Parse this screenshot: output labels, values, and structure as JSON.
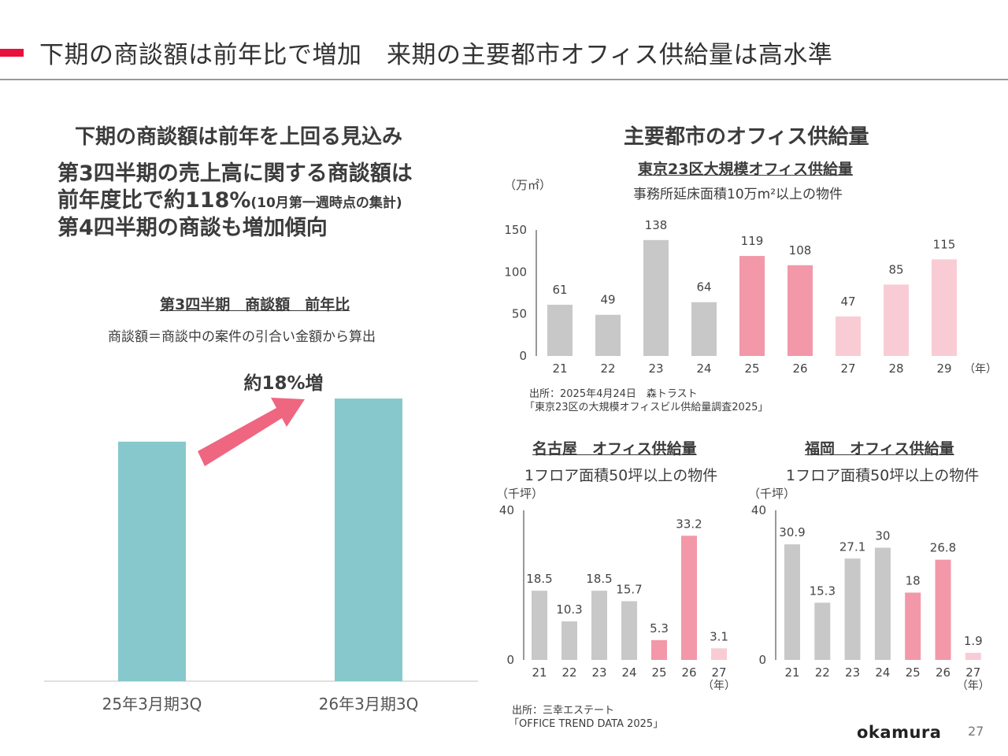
{
  "header": {
    "title": "下期の商談額は前年比で増加　来期の主要都市オフィス供給量は高水準"
  },
  "left": {
    "heading": "下期の商談額は前年を上回る見込み",
    "lead1": "第3四半期の売上高に関する商談額は",
    "lead2": "前年度比で約118%",
    "lead2_note": "(10月第一週時点の集計)",
    "lead3": "第4四半期の商談も増加傾向",
    "chart_title": "第3四半期　商談額　前年比",
    "chart_note": "商談額＝商談中の案件の引合い金額から算出",
    "increase_label": "約18%増"
  },
  "right": {
    "heading": "主要都市のオフィス供給量",
    "tokyo_title": "東京23区大規模オフィス供給量",
    "tokyo_note": "事務所延床面積10万m²以上の物件",
    "tokyo_source_1": "出所：2025年4月24日　森トラスト",
    "tokyo_source_2": "「東京23区の大規模オフィスビル供給量調査2025」",
    "nagoya_title": "名古屋　オフィス供給量",
    "fukuoka_title": "福岡　オフィス供給量",
    "area_note": "1フロア面積50坪以上の物件",
    "bottom_source_1": "出所：三幸エステート",
    "bottom_source_2": "「OFFICE TREND DATA 2025」"
  },
  "footer": {
    "logo": "okamura",
    "page": "27"
  },
  "colors": {
    "accent": "#e8103c",
    "teal": "#86c8cb",
    "gray": "#c8c8c8",
    "pink": "#f298a8",
    "lightpink": "#f9ccd5",
    "arrow": "#ef6680"
  },
  "chart_data": [
    {
      "id": "deals",
      "type": "bar",
      "title": "第3四半期　商談額　前年比",
      "categories": [
        "25年3月期3Q",
        "26年3月期3Q"
      ],
      "values": [
        100,
        118
      ],
      "unit": "relative index (prior year = 100)",
      "annotation": "約18%増"
    },
    {
      "id": "tokyo",
      "type": "bar",
      "title": "東京23区大規模オフィス供給量",
      "ylabel": "（万㎡）",
      "xlabel": "（年）",
      "categories": [
        "21",
        "22",
        "23",
        "24",
        "25",
        "26",
        "27",
        "28",
        "29"
      ],
      "values": [
        61,
        49,
        138,
        64,
        119,
        108,
        47,
        85,
        115
      ],
      "color_groups": [
        "gray",
        "gray",
        "gray",
        "gray",
        "pink",
        "pink",
        "lightpink",
        "lightpink",
        "lightpink"
      ],
      "ylim": [
        0,
        150
      ],
      "yticks": [
        0,
        50,
        100,
        150
      ]
    },
    {
      "id": "nagoya",
      "type": "bar",
      "title": "名古屋　オフィス供給量",
      "ylabel": "（千坪）",
      "xlabel": "（年）",
      "categories": [
        "21",
        "22",
        "23",
        "24",
        "25",
        "26",
        "27"
      ],
      "values": [
        18.5,
        10.3,
        18.5,
        15.7,
        5.3,
        33.2,
        3.1
      ],
      "color_groups": [
        "gray",
        "gray",
        "gray",
        "gray",
        "pink",
        "pink",
        "lightpink"
      ],
      "ylim": [
        0,
        40
      ],
      "yticks": [
        0,
        40
      ]
    },
    {
      "id": "fukuoka",
      "type": "bar",
      "title": "福岡　オフィス供給量",
      "ylabel": "（千坪）",
      "xlabel": "（年）",
      "categories": [
        "21",
        "22",
        "23",
        "24",
        "25",
        "26",
        "27"
      ],
      "values": [
        30.9,
        15.3,
        27.1,
        30,
        18,
        26.8,
        1.9
      ],
      "color_groups": [
        "gray",
        "gray",
        "gray",
        "gray",
        "pink",
        "pink",
        "lightpink"
      ],
      "ylim": [
        0,
        40
      ],
      "yticks": [
        0,
        40
      ]
    }
  ]
}
